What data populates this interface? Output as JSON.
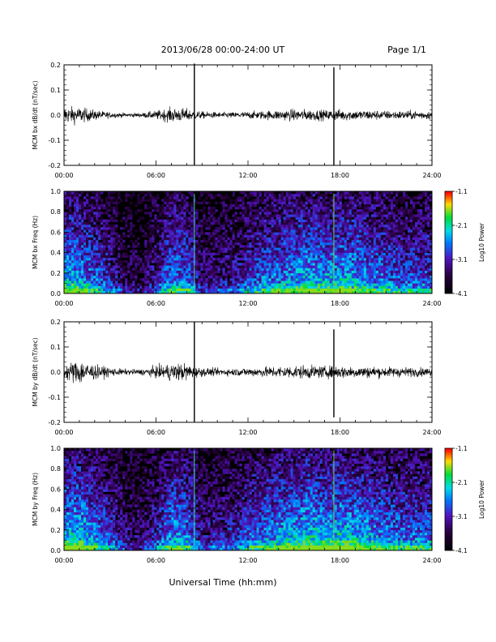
{
  "header": {
    "date_range": "2013/06/28  00:00-24:00 UT",
    "page": "Page 1/1"
  },
  "x_axis": {
    "ticks": [
      "00:00",
      "06:00",
      "12:00",
      "18:00",
      "24:00"
    ],
    "label": "Universal Time (hh:mm)"
  },
  "chart_data": [
    {
      "type": "line",
      "ylabel": "MCM bx dB/dt (nT/sec)",
      "xlim": [
        0,
        24
      ],
      "ylim": [
        -0.2,
        0.2
      ],
      "yticks": [
        "-0.2",
        "-0.1",
        "0.0",
        "0.1",
        "0.2"
      ],
      "envelope_hours": [
        0,
        1,
        2,
        3,
        4,
        5,
        6,
        7,
        8,
        8.5,
        9,
        10,
        11,
        12,
        13,
        14,
        15,
        16,
        17,
        18,
        19,
        20,
        21,
        22,
        23,
        24
      ],
      "envelope_amp": [
        0.06,
        0.055,
        0.035,
        0.02,
        0.015,
        0.015,
        0.03,
        0.05,
        0.045,
        0.03,
        0.025,
        0.02,
        0.02,
        0.025,
        0.03,
        0.035,
        0.04,
        0.04,
        0.035,
        0.04,
        0.035,
        0.035,
        0.03,
        0.03,
        0.03,
        0.03
      ],
      "spikes": [
        {
          "x": 8.5,
          "ymin": -0.2,
          "ymax": 0.21
        },
        {
          "x": 17.6,
          "ymin": -0.2,
          "ymax": 0.19
        }
      ]
    },
    {
      "type": "heatmap",
      "ylabel": "MCM bx Freq (Hz)",
      "xlim": [
        0,
        24
      ],
      "ylim": [
        0,
        1
      ],
      "yticks": [
        "0.0",
        "0.2",
        "0.4",
        "0.6",
        "0.8",
        "1.0"
      ],
      "colorbar": {
        "label": "Log10 Power",
        "ticks": [
          "-1.1",
          "-2.1",
          "-3.1",
          "-4.1"
        ],
        "min": -4.1,
        "max": -1.1
      },
      "activity_hours": [
        0,
        1,
        2,
        3,
        4,
        5,
        6,
        7,
        8,
        9,
        10,
        11,
        12,
        13,
        14,
        15,
        16,
        17,
        18,
        19,
        20,
        21,
        22,
        23,
        24
      ],
      "activity_level": [
        0.7,
        0.65,
        0.55,
        0.4,
        0.25,
        0.2,
        0.35,
        0.6,
        0.55,
        0.3,
        0.3,
        0.35,
        0.45,
        0.55,
        0.6,
        0.65,
        0.7,
        0.65,
        0.7,
        0.65,
        0.6,
        0.55,
        0.5,
        0.5,
        0.5
      ],
      "vertical_lines": [
        8.5,
        17.6
      ]
    },
    {
      "type": "line",
      "ylabel": "MCM by dB/dt (nT/sec)",
      "xlim": [
        0,
        24
      ],
      "ylim": [
        -0.2,
        0.2
      ],
      "yticks": [
        "-0.2",
        "-0.1",
        "0.0",
        "0.1",
        "0.2"
      ],
      "envelope_hours": [
        0,
        1,
        2,
        3,
        4,
        5,
        6,
        7,
        8,
        8.5,
        9,
        10,
        11,
        12,
        13,
        14,
        15,
        16,
        17,
        18,
        19,
        20,
        21,
        22,
        23,
        24
      ],
      "envelope_amp": [
        0.05,
        0.09,
        0.05,
        0.03,
        0.02,
        0.02,
        0.04,
        0.06,
        0.06,
        0.04,
        0.03,
        0.025,
        0.025,
        0.03,
        0.035,
        0.04,
        0.045,
        0.045,
        0.04,
        0.045,
        0.04,
        0.04,
        0.035,
        0.035,
        0.03,
        0.03
      ],
      "spikes": [
        {
          "x": 8.5,
          "ymin": -0.2,
          "ymax": 0.2
        },
        {
          "x": 17.6,
          "ymin": -0.18,
          "ymax": 0.17
        }
      ]
    },
    {
      "type": "heatmap",
      "ylabel": "MCM by Freq (Hz)",
      "xlim": [
        0,
        24
      ],
      "ylim": [
        0,
        1
      ],
      "yticks": [
        "0.0",
        "0.2",
        "0.4",
        "0.6",
        "0.8",
        "1.0"
      ],
      "colorbar": {
        "label": "Log10 Power",
        "ticks": [
          "-1.1",
          "-2.1",
          "-3.1",
          "-4.1"
        ],
        "min": -4.1,
        "max": -1.1
      },
      "activity_hours": [
        0,
        1,
        2,
        3,
        4,
        5,
        6,
        7,
        8,
        9,
        10,
        11,
        12,
        13,
        14,
        15,
        16,
        17,
        18,
        19,
        20,
        21,
        22,
        23,
        24
      ],
      "activity_level": [
        0.75,
        0.75,
        0.6,
        0.45,
        0.3,
        0.25,
        0.4,
        0.65,
        0.6,
        0.35,
        0.35,
        0.4,
        0.5,
        0.6,
        0.65,
        0.7,
        0.75,
        0.7,
        0.75,
        0.7,
        0.65,
        0.6,
        0.55,
        0.55,
        0.55
      ],
      "vertical_lines": [
        8.5,
        17.6
      ]
    }
  ]
}
